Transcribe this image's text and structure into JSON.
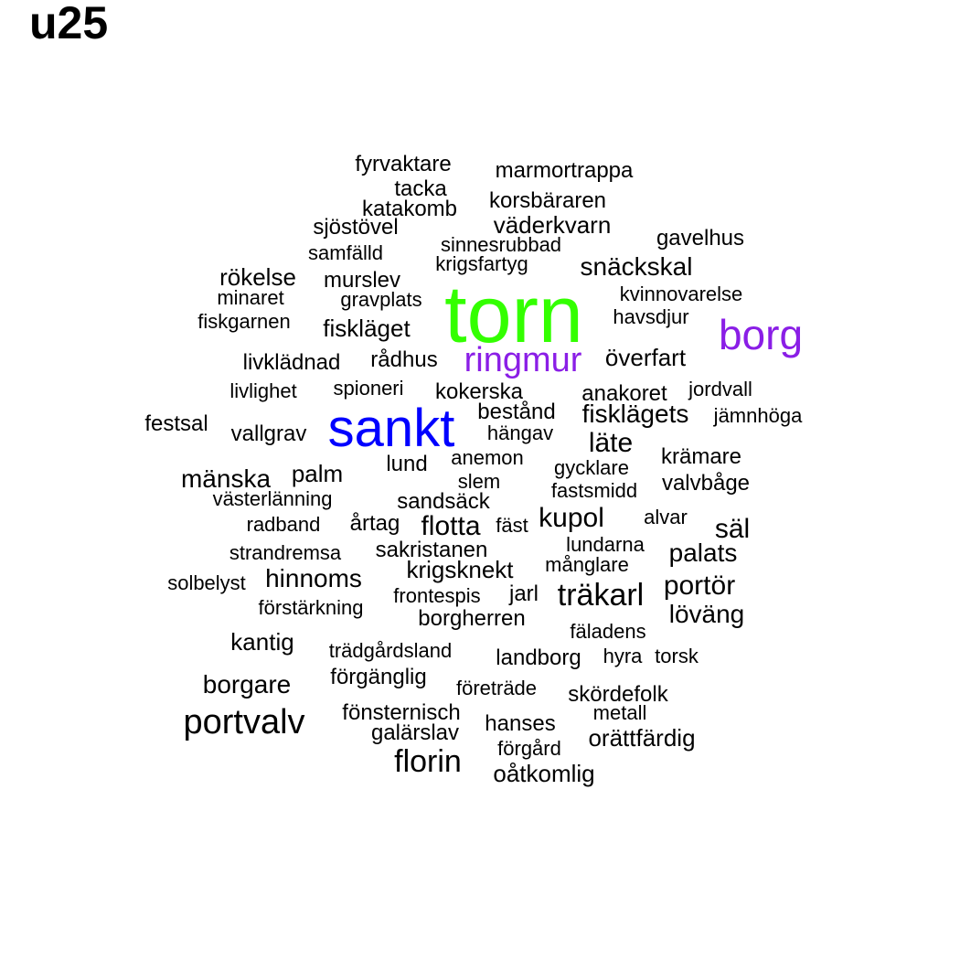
{
  "title": "u25",
  "colors": {
    "default": "#000000",
    "green": "#33ff00",
    "blue": "#0000ff",
    "purple": "#8a1ee6"
  },
  "words": [
    {
      "text": "torn",
      "color": "green"
    },
    {
      "text": "sankt",
      "color": "blue"
    },
    {
      "text": "borg",
      "color": "purple"
    },
    {
      "text": "ringmur",
      "color": "purple"
    },
    {
      "text": "fyrvaktare"
    },
    {
      "text": "marmortrappa"
    },
    {
      "text": "tacka"
    },
    {
      "text": "korsbäraren"
    },
    {
      "text": "katakomb"
    },
    {
      "text": "väderkvarn"
    },
    {
      "text": "sjöstövel"
    },
    {
      "text": "gavelhus"
    },
    {
      "text": "sinnesrubbad"
    },
    {
      "text": "samfälld"
    },
    {
      "text": "krigsfartyg"
    },
    {
      "text": "snäckskal"
    },
    {
      "text": "rökelse"
    },
    {
      "text": "murslev"
    },
    {
      "text": "minaret"
    },
    {
      "text": "gravplats"
    },
    {
      "text": "kvinnovarelse"
    },
    {
      "text": "fiskgarnen"
    },
    {
      "text": "havsdjur"
    },
    {
      "text": "fiskläget"
    },
    {
      "text": "livklädnad"
    },
    {
      "text": "rådhus"
    },
    {
      "text": "överfart"
    },
    {
      "text": "livlighet"
    },
    {
      "text": "spioneri"
    },
    {
      "text": "kokerska"
    },
    {
      "text": "anakoret"
    },
    {
      "text": "jordvall"
    },
    {
      "text": "bestånd"
    },
    {
      "text": "fiskläg­ets"
    },
    {
      "text": "jämnhöga"
    },
    {
      "text": "festsal"
    },
    {
      "text": "vallgrav"
    },
    {
      "text": "hängav"
    },
    {
      "text": "läte"
    },
    {
      "text": "anemon"
    },
    {
      "text": "krämare"
    },
    {
      "text": "lund"
    },
    {
      "text": "gycklare"
    },
    {
      "text": "mänska"
    },
    {
      "text": "palm"
    },
    {
      "text": "slem"
    },
    {
      "text": "valvbåge"
    },
    {
      "text": "västerlänning"
    },
    {
      "text": "fastsmidd"
    },
    {
      "text": "sandsäck"
    },
    {
      "text": "radband"
    },
    {
      "text": "årtag"
    },
    {
      "text": "flotta"
    },
    {
      "text": "fäst"
    },
    {
      "text": "kupol"
    },
    {
      "text": "alvar"
    },
    {
      "text": "säl"
    },
    {
      "text": "strandremsa"
    },
    {
      "text": "sakristanen"
    },
    {
      "text": "lundarna"
    },
    {
      "text": "palats"
    },
    {
      "text": "krigsknekt"
    },
    {
      "text": "månglare"
    },
    {
      "text": "solbelyst"
    },
    {
      "text": "hinnoms"
    },
    {
      "text": "portör"
    },
    {
      "text": "träkarl"
    },
    {
      "text": "frontespis"
    },
    {
      "text": "jarl"
    },
    {
      "text": "förstärkning"
    },
    {
      "text": "löväng"
    },
    {
      "text": "borgherren"
    },
    {
      "text": "fäladens"
    },
    {
      "text": "kantig"
    },
    {
      "text": "trädgårdsland"
    },
    {
      "text": "landborg"
    },
    {
      "text": "hyra"
    },
    {
      "text": "torsk"
    },
    {
      "text": "borgare"
    },
    {
      "text": "förgänglig"
    },
    {
      "text": "företräde"
    },
    {
      "text": "skördefolk"
    },
    {
      "text": "portvalv"
    },
    {
      "text": "fönsternisch"
    },
    {
      "text": "metall"
    },
    {
      "text": "hanses"
    },
    {
      "text": "galärslav"
    },
    {
      "text": "orättfärdig"
    },
    {
      "text": "förgård"
    },
    {
      "text": "florin"
    },
    {
      "text": "oåtkomlig"
    }
  ]
}
